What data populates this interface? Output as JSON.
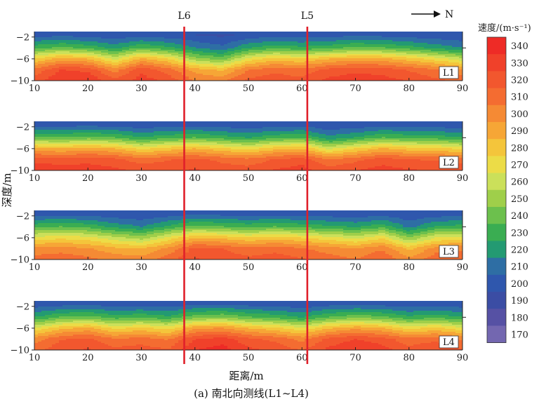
{
  "chart_data": {
    "type": "heatmap",
    "caption": "(a) 南北向测线(L1~L4)",
    "xlabel": "距离/m",
    "ylabel": "深度/m",
    "direction_label": "N",
    "xlim": [
      10,
      90
    ],
    "ylim": [
      -10,
      -1
    ],
    "x_ticks": [
      10,
      20,
      30,
      40,
      50,
      60,
      70,
      80,
      90
    ],
    "y_ticks": [
      -2,
      -6,
      -10
    ],
    "markers": [
      {
        "label": "L6",
        "x": 38
      },
      {
        "label": "L5",
        "x": 61
      }
    ],
    "colorbar": {
      "title": "速度/(m·s⁻¹)",
      "levels": [
        340,
        330,
        320,
        310,
        300,
        290,
        280,
        270,
        260,
        250,
        240,
        230,
        220,
        210,
        200,
        190,
        180,
        170
      ],
      "colors": [
        "#ee2b26",
        "#f0412a",
        "#f2572e",
        "#f46c31",
        "#f58a34",
        "#f6a636",
        "#f4c53b",
        "#ecdc47",
        "#cbe05a",
        "#9fcf4a",
        "#6cc04d",
        "#3aad52",
        "#239a72",
        "#2e6ea4",
        "#2f57ad",
        "#3b4da4",
        "#5651a4",
        "#7367b0"
      ]
    },
    "series": [
      {
        "name": "L1",
        "top_velocity": 195,
        "profile": [
          {
            "x": 10,
            "v": [
              198,
              232,
              275,
              308,
              320
            ]
          },
          {
            "x": 15,
            "v": [
              200,
              238,
              290,
              325,
              335
            ]
          },
          {
            "x": 20,
            "v": [
              198,
              232,
              285,
              322,
              335
            ]
          },
          {
            "x": 25,
            "v": [
              196,
              222,
              262,
              300,
              318
            ]
          },
          {
            "x": 30,
            "v": [
              198,
              235,
              288,
              322,
              330
            ]
          },
          {
            "x": 35,
            "v": [
              196,
              228,
              275,
              310,
              322
            ]
          },
          {
            "x": 40,
            "v": [
              194,
              215,
              250,
              290,
              305
            ]
          },
          {
            "x": 45,
            "v": [
              192,
              208,
              240,
              283,
              302
            ]
          },
          {
            "x": 50,
            "v": [
              196,
              225,
              268,
              305,
              318
            ]
          },
          {
            "x": 55,
            "v": [
              198,
              232,
              280,
              312,
              322
            ]
          },
          {
            "x": 60,
            "v": [
              197,
              228,
              275,
              308,
              318
            ]
          },
          {
            "x": 65,
            "v": [
              198,
              232,
              285,
              318,
              328
            ]
          },
          {
            "x": 70,
            "v": [
              200,
              238,
              290,
              322,
              332
            ]
          },
          {
            "x": 75,
            "v": [
              199,
              236,
              288,
              320,
              330
            ]
          },
          {
            "x": 80,
            "v": [
              197,
              230,
              280,
              314,
              324
            ]
          },
          {
            "x": 85,
            "v": [
              196,
              222,
              270,
              306,
              318
            ]
          },
          {
            "x": 90,
            "v": [
              195,
              215,
              258,
              298,
              312
            ]
          }
        ]
      },
      {
        "name": "L2",
        "top_velocity": 195,
        "profile": [
          {
            "x": 10,
            "v": [
              198,
              238,
              288,
              322,
              332
            ]
          },
          {
            "x": 15,
            "v": [
              198,
              236,
              285,
              320,
              330
            ]
          },
          {
            "x": 20,
            "v": [
              199,
              240,
              290,
              322,
              330
            ]
          },
          {
            "x": 25,
            "v": [
              198,
              236,
              285,
              318,
              328
            ]
          },
          {
            "x": 30,
            "v": [
              196,
              226,
              272,
              310,
              322
            ]
          },
          {
            "x": 35,
            "v": [
              197,
              232,
              280,
              314,
              324
            ]
          },
          {
            "x": 40,
            "v": [
              198,
              236,
              285,
              318,
              326
            ]
          },
          {
            "x": 45,
            "v": [
              197,
              230,
              278,
              312,
              322
            ]
          },
          {
            "x": 50,
            "v": [
              196,
              225,
              270,
              308,
              320
            ]
          },
          {
            "x": 55,
            "v": [
              197,
              232,
              282,
              316,
              326
            ]
          },
          {
            "x": 60,
            "v": [
              198,
              236,
              285,
              320,
              330
            ]
          },
          {
            "x": 65,
            "v": [
              195,
              218,
              262,
              305,
              320
            ]
          },
          {
            "x": 70,
            "v": [
              196,
              226,
              275,
              312,
              325
            ]
          },
          {
            "x": 75,
            "v": [
              198,
              236,
              286,
              320,
              330
            ]
          },
          {
            "x": 80,
            "v": [
              197,
              232,
              280,
              315,
              326
            ]
          },
          {
            "x": 85,
            "v": [
              197,
              230,
              278,
              314,
              325
            ]
          },
          {
            "x": 90,
            "v": [
              196,
              226,
              272,
              310,
              322
            ]
          }
        ]
      },
      {
        "name": "L3",
        "top_velocity": 195,
        "profile": [
          {
            "x": 10,
            "v": [
              198,
              232,
              268,
              298,
              310
            ]
          },
          {
            "x": 15,
            "v": [
              199,
              236,
              272,
              300,
              312
            ]
          },
          {
            "x": 20,
            "v": [
              198,
              232,
              268,
              296,
              308
            ]
          },
          {
            "x": 25,
            "v": [
              196,
              222,
              258,
              288,
              302
            ]
          },
          {
            "x": 30,
            "v": [
              195,
              215,
              250,
              285,
              300
            ]
          },
          {
            "x": 35,
            "v": [
              197,
              228,
              268,
              298,
              310
            ]
          },
          {
            "x": 40,
            "v": [
              200,
              240,
              285,
              318,
              326
            ]
          },
          {
            "x": 45,
            "v": [
              199,
              236,
              282,
              315,
              322
            ]
          },
          {
            "x": 50,
            "v": [
              198,
              232,
              275,
              308,
              318
            ]
          },
          {
            "x": 55,
            "v": [
              199,
              236,
              280,
              312,
              320
            ]
          },
          {
            "x": 60,
            "v": [
              198,
              232,
              275,
              306,
              316
            ]
          },
          {
            "x": 65,
            "v": [
              197,
              228,
              268,
              300,
              310
            ]
          },
          {
            "x": 70,
            "v": [
              196,
              224,
              262,
              295,
              306
            ]
          },
          {
            "x": 75,
            "v": [
              198,
              232,
              272,
              304,
              314
            ]
          },
          {
            "x": 80,
            "v": [
              195,
              212,
              245,
              282,
              298
            ]
          },
          {
            "x": 85,
            "v": [
              197,
              226,
              265,
              300,
              312
            ]
          },
          {
            "x": 90,
            "v": [
              198,
              230,
              270,
              303,
              314
            ]
          }
        ]
      },
      {
        "name": "L4",
        "top_velocity": 195,
        "profile": [
          {
            "x": 10,
            "v": [
              197,
              225,
              265,
              300,
              312
            ]
          },
          {
            "x": 15,
            "v": [
              199,
              236,
              282,
              314,
              322
            ]
          },
          {
            "x": 20,
            "v": [
              200,
              240,
              288,
              318,
              326
            ]
          },
          {
            "x": 25,
            "v": [
              198,
              230,
              272,
              306,
              318
            ]
          },
          {
            "x": 30,
            "v": [
              199,
              234,
              278,
              310,
              320
            ]
          },
          {
            "x": 35,
            "v": [
              197,
              228,
              270,
              304,
              316
            ]
          },
          {
            "x": 40,
            "v": [
              200,
              242,
              292,
              325,
              335
            ]
          },
          {
            "x": 45,
            "v": [
              201,
              245,
              296,
              330,
              340
            ]
          },
          {
            "x": 50,
            "v": [
              199,
              236,
              284,
              318,
              328
            ]
          },
          {
            "x": 55,
            "v": [
              198,
              232,
              278,
              312,
              322
            ]
          },
          {
            "x": 60,
            "v": [
              196,
              224,
              266,
              302,
              314
            ]
          },
          {
            "x": 65,
            "v": [
              199,
              236,
              284,
              318,
              328
            ]
          },
          {
            "x": 70,
            "v": [
              200,
              242,
              292,
              325,
              335
            ]
          },
          {
            "x": 75,
            "v": [
              199,
              238,
              286,
              320,
              330
            ]
          },
          {
            "x": 80,
            "v": [
              197,
              228,
              272,
              308,
              320
            ]
          },
          {
            "x": 85,
            "v": [
              198,
              232,
              278,
              312,
              324
            ]
          },
          {
            "x": 90,
            "v": [
              197,
              226,
              268,
              304,
              316
            ]
          }
        ]
      }
    ]
  }
}
